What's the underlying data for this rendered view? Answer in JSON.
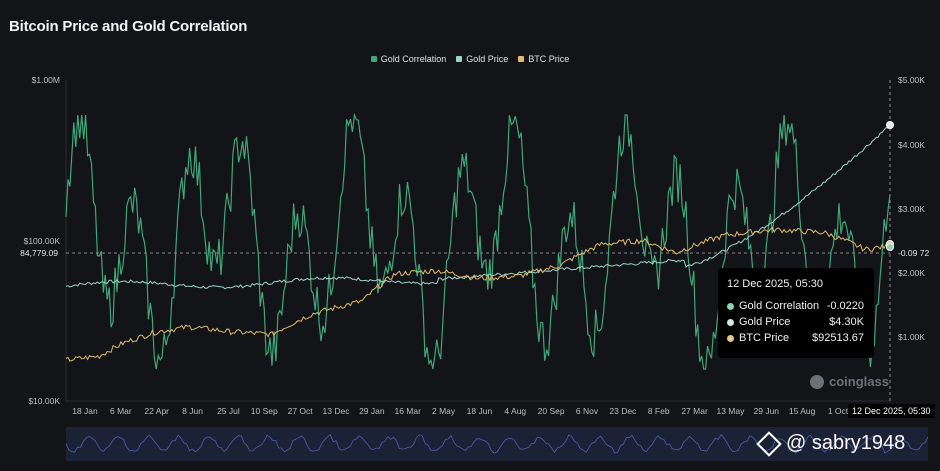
{
  "chart_data": {
    "type": "line",
    "title": "Bitcoin Price and Gold Correlation",
    "legend": [
      {
        "name": "Gold Correlation",
        "color": "#3fa77a"
      },
      {
        "name": "Gold Price",
        "color": "#9fd2c9"
      },
      {
        "name": "BTC Price",
        "color": "#e0b96e"
      }
    ],
    "legend_position": "top-center",
    "x_ticks": [
      "18 Jan",
      "6 Mar",
      "22 Apr",
      "8 Jun",
      "25 Jul",
      "10 Sep",
      "27 Oct",
      "13 Dec",
      "29 Jan",
      "16 Mar",
      "2 May",
      "18 Jun",
      "4 Aug",
      "20 Sep",
      "6 Nov",
      "23 Dec",
      "8 Feb",
      "27 Mar",
      "13 May",
      "29 Jun",
      "15 Aug",
      "1 Oct"
    ],
    "x_current_label": "12 Dec 2025, 05:30",
    "left_axis": {
      "scale": "log",
      "ticks": [
        "$1.00M",
        "$100.00K",
        "$10.00K"
      ],
      "current_label": "84,779.09"
    },
    "right_axis": {
      "ticks": [
        "$5.00K",
        "$4.00K",
        "$3.00K",
        "$2.00K",
        "$1.00K"
      ],
      "current_label": "-0.09 72"
    },
    "series": [
      {
        "name": "Gold Correlation",
        "range": [
          -1,
          1
        ]
      },
      {
        "name": "Gold Price",
        "start": 1800,
        "end": 4300
      },
      {
        "name": "BTC Price",
        "start": 20000,
        "peak": 115000,
        "end": 92513.67
      }
    ],
    "tooltip": {
      "title": "12 Dec 2025, 05:30",
      "rows": [
        {
          "label": "Gold Correlation",
          "value": "-0.0220",
          "color": "#8fd0b3"
        },
        {
          "label": "Gold Price",
          "value": "$4.30K",
          "color": "#cfe8e4"
        },
        {
          "label": "BTC Price",
          "value": "$92513.67",
          "color": "#e5c98c"
        }
      ]
    },
    "grid": false
  },
  "watermark": "coinglass",
  "overlay_text": "@ sabry1948"
}
